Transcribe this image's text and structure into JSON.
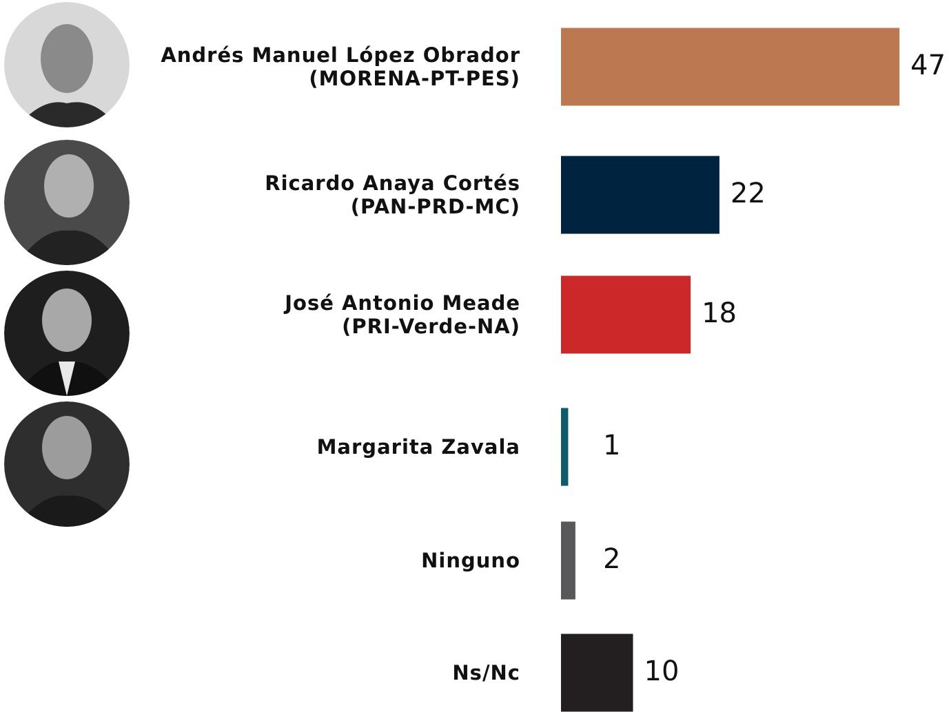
{
  "chart_data": {
    "type": "bar",
    "orientation": "horizontal",
    "categories": [
      [
        "Andrés Manuel López Obrador",
        "(MORENA-PT-PES)"
      ],
      [
        "Ricardo Anaya Cortés",
        "(PAN-PRD-MC)"
      ],
      [
        "José Antonio Meade",
        "(PRI-Verde-NA)"
      ],
      [
        "Margarita Zavala"
      ],
      [
        "Ninguno"
      ],
      [
        "Ns/Nc"
      ]
    ],
    "values": [
      47,
      22,
      18,
      1,
      2,
      10
    ],
    "colors": [
      "#bc7850",
      "#002340",
      "#cc2729",
      "#0e5b6a",
      "#58585a",
      "#231f20"
    ]
  }
}
